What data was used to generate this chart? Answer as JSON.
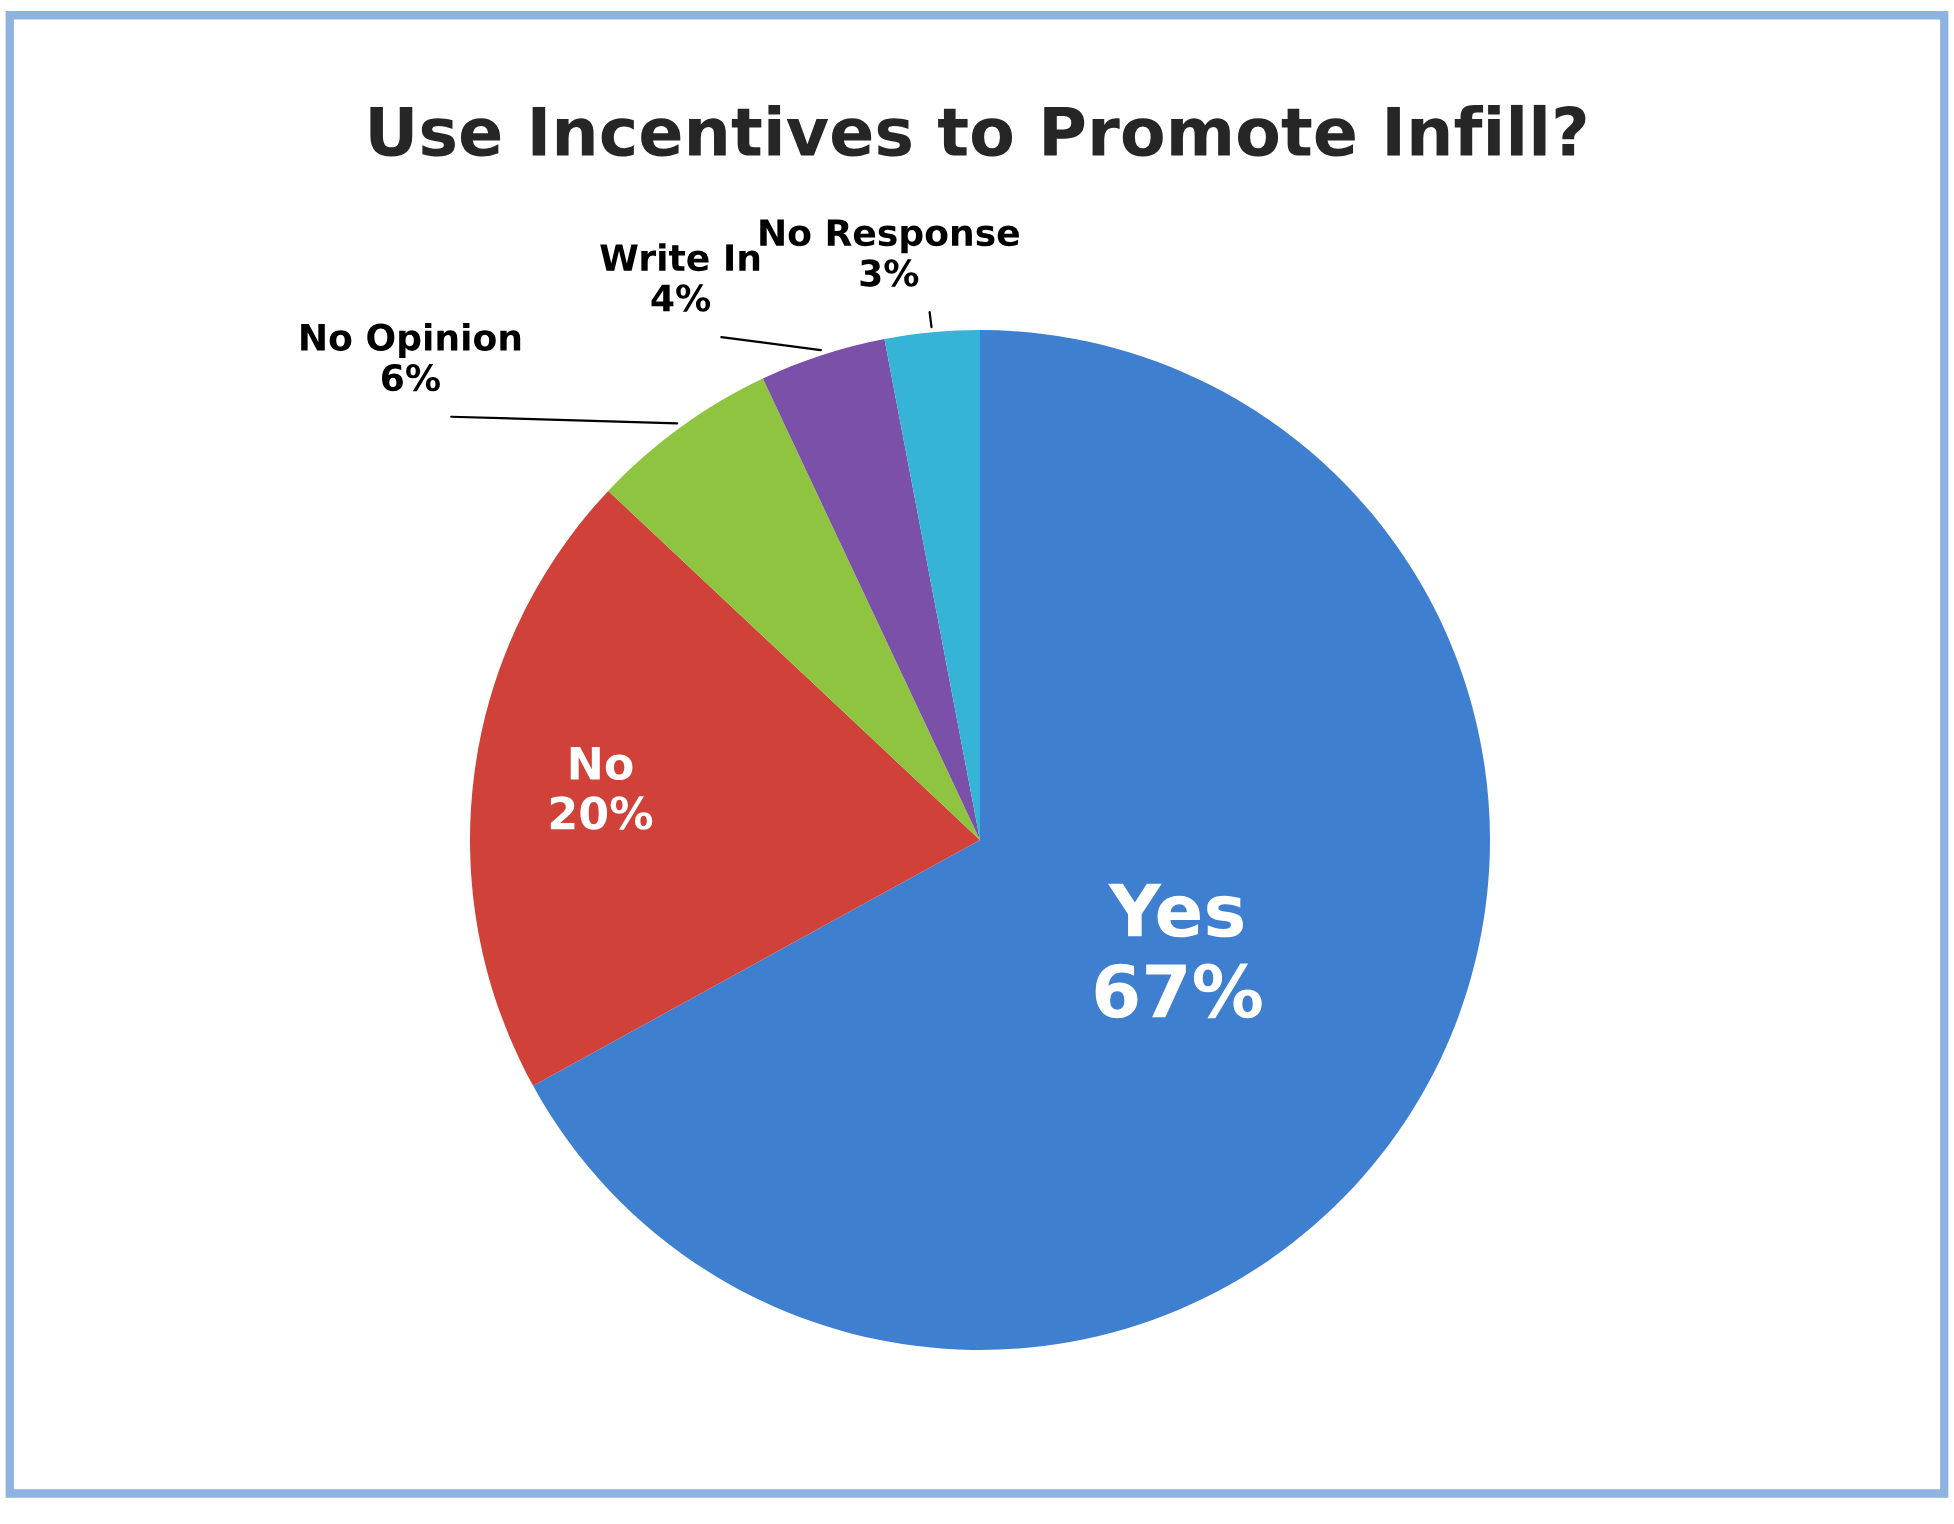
{
  "chart_data": {
    "type": "pie",
    "title": "Use Incentives to Promote Infill?",
    "categories": [
      "Yes",
      "No",
      "No Opinion",
      "Write In",
      "No Response"
    ],
    "values": [
      67,
      20,
      6,
      4,
      3
    ],
    "value_labels": [
      "67%",
      "20%",
      "6%",
      "4%",
      "3%"
    ],
    "colors": [
      "#3f7fd0",
      "#d0413a",
      "#8fc440",
      "#7a50a8",
      "#35b4d8"
    ]
  }
}
